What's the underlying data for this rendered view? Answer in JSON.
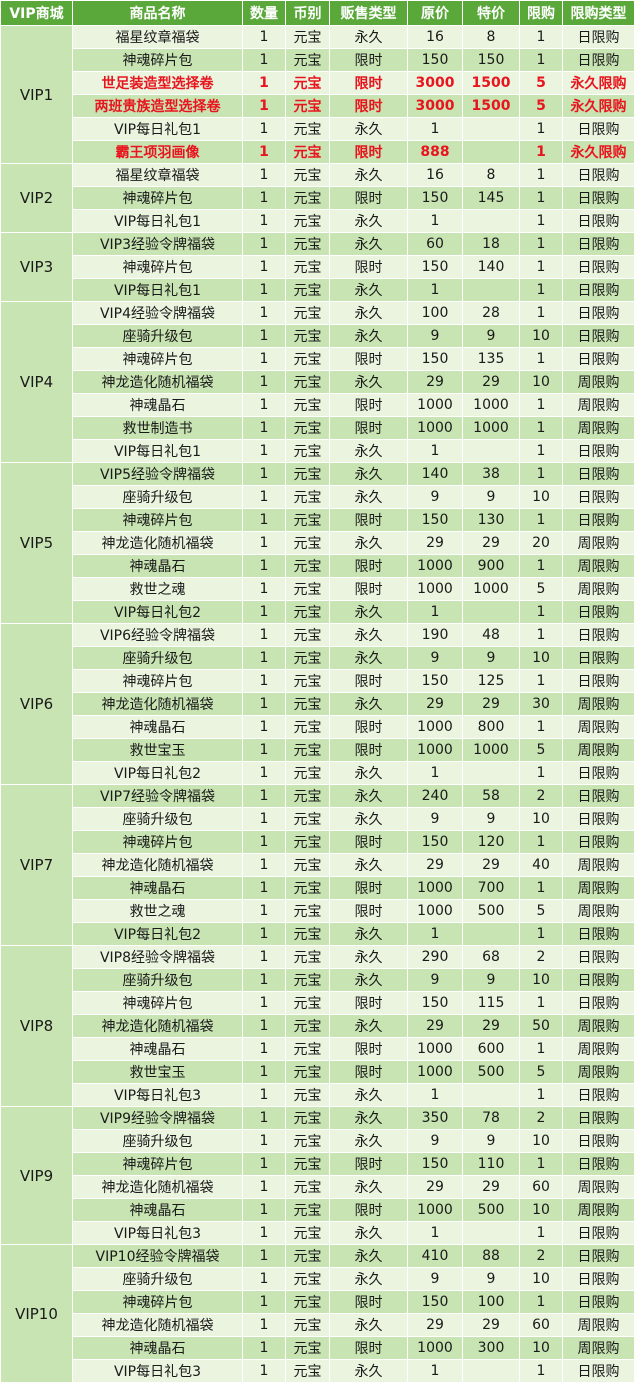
{
  "headers": [
    "VIP商城",
    "商品名称",
    "数量",
    "币别",
    "贩售类型",
    "原价",
    "特价",
    "限购",
    "限购类型"
  ],
  "colors": {
    "header_bg": "#5aa83a",
    "row_light": "#eaf4df",
    "row_dark": "#c8e4b3",
    "highlight_text": "#e8141e"
  },
  "groups": [
    {
      "vip": "VIP1",
      "items": [
        [
          "福星纹章福袋",
          "1",
          "元宝",
          "永久",
          "16",
          "8",
          "1",
          "日限购"
        ],
        [
          "神魂碎片包",
          "1",
          "元宝",
          "限时",
          "150",
          "150",
          "1",
          "日限购"
        ],
        [
          "世足装造型选择卷",
          "1",
          "元宝",
          "限时",
          "3000",
          "1500",
          "5",
          "永久限购"
        ],
        [
          "两班贵族造型选择卷",
          "1",
          "元宝",
          "限时",
          "3000",
          "1500",
          "5",
          "永久限购"
        ],
        [
          "VIP每日礼包1",
          "1",
          "元宝",
          "永久",
          "1",
          "",
          "1",
          "日限购"
        ],
        [
          "霸王项羽画像",
          "1",
          "元宝",
          "限时",
          "888",
          "",
          "1",
          "永久限购"
        ]
      ],
      "highlight": [
        2,
        3,
        5
      ]
    },
    {
      "vip": "VIP2",
      "items": [
        [
          "福星纹章福袋",
          "1",
          "元宝",
          "永久",
          "16",
          "8",
          "1",
          "日限购"
        ],
        [
          "神魂碎片包",
          "1",
          "元宝",
          "限时",
          "150",
          "145",
          "1",
          "日限购"
        ],
        [
          "VIP每日礼包1",
          "1",
          "元宝",
          "永久",
          "1",
          "",
          "1",
          "日限购"
        ]
      ]
    },
    {
      "vip": "VIP3",
      "items": [
        [
          "VIP3经验令牌福袋",
          "1",
          "元宝",
          "永久",
          "60",
          "18",
          "1",
          "日限购"
        ],
        [
          "神魂碎片包",
          "1",
          "元宝",
          "限时",
          "150",
          "140",
          "1",
          "日限购"
        ],
        [
          "VIP每日礼包1",
          "1",
          "元宝",
          "永久",
          "1",
          "",
          "1",
          "日限购"
        ]
      ]
    },
    {
      "vip": "VIP4",
      "items": [
        [
          "VIP4经验令牌福袋",
          "1",
          "元宝",
          "永久",
          "100",
          "28",
          "1",
          "日限购"
        ],
        [
          "座骑升级包",
          "1",
          "元宝",
          "永久",
          "9",
          "9",
          "10",
          "日限购"
        ],
        [
          "神魂碎片包",
          "1",
          "元宝",
          "限时",
          "150",
          "135",
          "1",
          "日限购"
        ],
        [
          "神龙造化随机福袋",
          "1",
          "元宝",
          "永久",
          "29",
          "29",
          "10",
          "周限购"
        ],
        [
          "神魂晶石",
          "1",
          "元宝",
          "限时",
          "1000",
          "1000",
          "1",
          "周限购"
        ],
        [
          "救世制造书",
          "1",
          "元宝",
          "限时",
          "1000",
          "1000",
          "1",
          "周限购"
        ],
        [
          "VIP每日礼包1",
          "1",
          "元宝",
          "永久",
          "1",
          "",
          "1",
          "日限购"
        ]
      ]
    },
    {
      "vip": "VIP5",
      "items": [
        [
          "VIP5经验令牌福袋",
          "1",
          "元宝",
          "永久",
          "140",
          "38",
          "1",
          "日限购"
        ],
        [
          "座骑升级包",
          "1",
          "元宝",
          "永久",
          "9",
          "9",
          "10",
          "日限购"
        ],
        [
          "神魂碎片包",
          "1",
          "元宝",
          "限时",
          "150",
          "130",
          "1",
          "日限购"
        ],
        [
          "神龙造化随机福袋",
          "1",
          "元宝",
          "永久",
          "29",
          "29",
          "20",
          "周限购"
        ],
        [
          "神魂晶石",
          "1",
          "元宝",
          "限时",
          "1000",
          "900",
          "1",
          "周限购"
        ],
        [
          "救世之魂",
          "1",
          "元宝",
          "限时",
          "1000",
          "1000",
          "5",
          "周限购"
        ],
        [
          "VIP每日礼包2",
          "1",
          "元宝",
          "永久",
          "1",
          "",
          "1",
          "日限购"
        ]
      ]
    },
    {
      "vip": "VIP6",
      "items": [
        [
          "VIP6经验令牌福袋",
          "1",
          "元宝",
          "永久",
          "190",
          "48",
          "1",
          "日限购"
        ],
        [
          "座骑升级包",
          "1",
          "元宝",
          "永久",
          "9",
          "9",
          "10",
          "日限购"
        ],
        [
          "神魂碎片包",
          "1",
          "元宝",
          "限时",
          "150",
          "125",
          "1",
          "日限购"
        ],
        [
          "神龙造化随机福袋",
          "1",
          "元宝",
          "永久",
          "29",
          "29",
          "30",
          "周限购"
        ],
        [
          "神魂晶石",
          "1",
          "元宝",
          "限时",
          "1000",
          "800",
          "1",
          "周限购"
        ],
        [
          "救世宝玉",
          "1",
          "元宝",
          "限时",
          "1000",
          "1000",
          "5",
          "周限购"
        ],
        [
          "VIP每日礼包2",
          "1",
          "元宝",
          "永久",
          "1",
          "",
          "1",
          "日限购"
        ]
      ]
    },
    {
      "vip": "VIP7",
      "items": [
        [
          "VIP7经验令牌福袋",
          "1",
          "元宝",
          "永久",
          "240",
          "58",
          "2",
          "日限购"
        ],
        [
          "座骑升级包",
          "1",
          "元宝",
          "永久",
          "9",
          "9",
          "10",
          "日限购"
        ],
        [
          "神魂碎片包",
          "1",
          "元宝",
          "限时",
          "150",
          "120",
          "1",
          "日限购"
        ],
        [
          "神龙造化随机福袋",
          "1",
          "元宝",
          "永久",
          "29",
          "29",
          "40",
          "周限购"
        ],
        [
          "神魂晶石",
          "1",
          "元宝",
          "限时",
          "1000",
          "700",
          "1",
          "周限购"
        ],
        [
          "救世之魂",
          "1",
          "元宝",
          "限时",
          "1000",
          "500",
          "5",
          "周限购"
        ],
        [
          "VIP每日礼包2",
          "1",
          "元宝",
          "永久",
          "1",
          "",
          "1",
          "日限购"
        ]
      ]
    },
    {
      "vip": "VIP8",
      "items": [
        [
          "VIP8经验令牌福袋",
          "1",
          "元宝",
          "永久",
          "290",
          "68",
          "2",
          "日限购"
        ],
        [
          "座骑升级包",
          "1",
          "元宝",
          "永久",
          "9",
          "9",
          "10",
          "日限购"
        ],
        [
          "神魂碎片包",
          "1",
          "元宝",
          "限时",
          "150",
          "115",
          "1",
          "日限购"
        ],
        [
          "神龙造化随机福袋",
          "1",
          "元宝",
          "永久",
          "29",
          "29",
          "50",
          "周限购"
        ],
        [
          "神魂晶石",
          "1",
          "元宝",
          "限时",
          "1000",
          "600",
          "1",
          "周限购"
        ],
        [
          "救世宝玉",
          "1",
          "元宝",
          "限时",
          "1000",
          "500",
          "5",
          "周限购"
        ],
        [
          "VIP每日礼包3",
          "1",
          "元宝",
          "永久",
          "1",
          "",
          "1",
          "日限购"
        ]
      ]
    },
    {
      "vip": "VIP9",
      "items": [
        [
          "VIP9经验令牌福袋",
          "1",
          "元宝",
          "永久",
          "350",
          "78",
          "2",
          "日限购"
        ],
        [
          "座骑升级包",
          "1",
          "元宝",
          "永久",
          "9",
          "9",
          "10",
          "日限购"
        ],
        [
          "神魂碎片包",
          "1",
          "元宝",
          "限时",
          "150",
          "110",
          "1",
          "日限购"
        ],
        [
          "神龙造化随机福袋",
          "1",
          "元宝",
          "永久",
          "29",
          "29",
          "60",
          "周限购"
        ],
        [
          "神魂晶石",
          "1",
          "元宝",
          "限时",
          "1000",
          "500",
          "10",
          "周限购"
        ],
        [
          "VIP每日礼包3",
          "1",
          "元宝",
          "永久",
          "1",
          "",
          "1",
          "日限购"
        ]
      ]
    },
    {
      "vip": "VIP10",
      "items": [
        [
          "VIP10经验令牌福袋",
          "1",
          "元宝",
          "永久",
          "410",
          "88",
          "2",
          "日限购"
        ],
        [
          "座骑升级包",
          "1",
          "元宝",
          "永久",
          "9",
          "9",
          "10",
          "日限购"
        ],
        [
          "神魂碎片包",
          "1",
          "元宝",
          "限时",
          "150",
          "100",
          "1",
          "日限购"
        ],
        [
          "神龙造化随机福袋",
          "1",
          "元宝",
          "永久",
          "29",
          "29",
          "60",
          "周限购"
        ],
        [
          "神魂晶石",
          "1",
          "元宝",
          "限时",
          "1000",
          "300",
          "10",
          "周限购"
        ],
        [
          "VIP每日礼包3",
          "1",
          "元宝",
          "永久",
          "1",
          "",
          "1",
          "日限购"
        ]
      ]
    }
  ]
}
